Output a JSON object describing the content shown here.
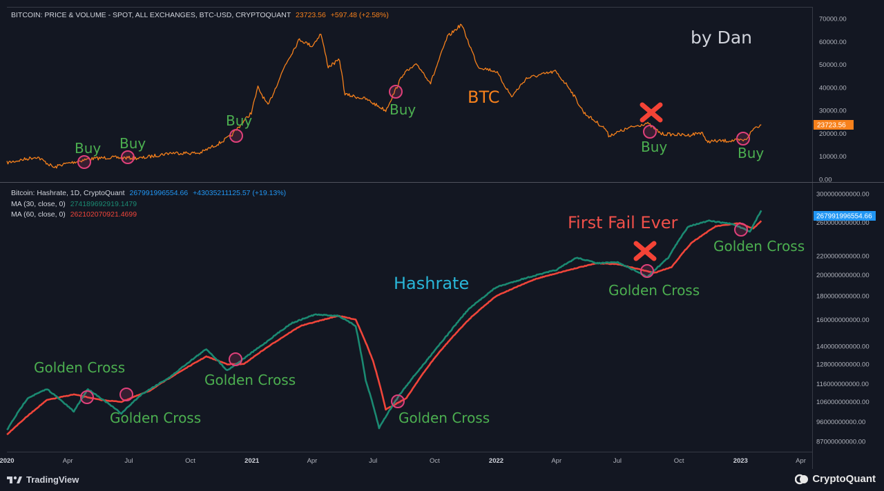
{
  "header_top": {
    "title": "BITCOIN: PRICE & VOLUME - SPOT, ALL EXCHANGES, BTC-USD, CRYPTOQUANT",
    "value": "23723.56",
    "change": "+597.48 (+2.58%)"
  },
  "header_bottom": {
    "title": "Bitcoin: Hashrate, 1D, CryptoQuant",
    "value": "267991996554.66",
    "change": "+43035211125.57 (+19.13%)",
    "ma30_label": "MA (30, close, 0)",
    "ma30_value": "274189692919.1479",
    "ma60_label": "MA (60, close, 0)",
    "ma60_value": "262102070921.4699"
  },
  "annotations": {
    "author": "by Dan",
    "btc": "BTC",
    "hashrate": "Hashrate",
    "first_fail": "First Fail Ever",
    "buy": "Buy",
    "golden_cross": "Golden Cross"
  },
  "price_badge": "23723.56",
  "hash_badge": "267991996554.66",
  "footer": {
    "tradingview": "TradingView",
    "cryptoquant": "CryptoQuant"
  },
  "colors": {
    "btc": "#f7811c",
    "ma30": "#1b8a72",
    "ma60": "#f0453a",
    "buy_text": "#4caf50",
    "circle": "#e0407a",
    "x_mark": "#f44336",
    "hashrate_text": "#29b6d8",
    "first_fail_text": "#f0504a",
    "hash_badge": "#2196f3",
    "background": "#131722"
  },
  "chart_data": [
    {
      "type": "line",
      "title": "BITCOIN: PRICE & VOLUME - SPOT, ALL EXCHANGES, BTC-USD, CRYPTOQUANT",
      "ylim": [
        0,
        70000
      ],
      "yticks": [
        "70000.00",
        "60000.00",
        "50000.00",
        "40000.00",
        "30000.00",
        "20000.00",
        "10000.00",
        "0.00"
      ],
      "series": [
        {
          "name": "BTC",
          "x": [
            "2020-01-01",
            "2020-02-15",
            "2020-03-12",
            "2020-03-20",
            "2020-05-01",
            "2020-06-01",
            "2020-07-20",
            "2020-09-01",
            "2020-10-15",
            "2020-11-15",
            "2020-12-01",
            "2020-12-31",
            "2021-01-10",
            "2021-01-25",
            "2021-02-20",
            "2021-03-13",
            "2021-04-01",
            "2021-04-14",
            "2021-04-25",
            "2021-05-12",
            "2021-05-20",
            "2021-06-20",
            "2021-07-20",
            "2021-08-15",
            "2021-09-05",
            "2021-09-25",
            "2021-10-20",
            "2021-11-10",
            "2021-12-05",
            "2022-01-01",
            "2022-01-24",
            "2022-02-15",
            "2022-03-30",
            "2022-04-20",
            "2022-05-12",
            "2022-06-13",
            "2022-06-18",
            "2022-07-20",
            "2022-08-14",
            "2022-09-05",
            "2022-10-15",
            "2022-11-05",
            "2022-11-10",
            "2022-12-15",
            "2023-01-08",
            "2023-01-22",
            "2023-02-01"
          ],
          "values": [
            7200,
            9800,
            5000,
            6200,
            8800,
            9500,
            9200,
            11500,
            11400,
            16000,
            19000,
            29000,
            40000,
            32000,
            50000,
            61000,
            58000,
            63500,
            49000,
            52000,
            37000,
            35000,
            30000,
            46000,
            50000,
            42000,
            62000,
            67500,
            49000,
            47000,
            36000,
            44000,
            47000,
            40000,
            29000,
            22000,
            19000,
            22500,
            24500,
            19800,
            19200,
            20500,
            16500,
            16800,
            17000,
            22500,
            23723
          ]
        }
      ],
      "annotations": [
        {
          "text": "Buy",
          "x": "2020-04-20"
        },
        {
          "text": "Buy",
          "x": "2020-06-25"
        },
        {
          "text": "Buy",
          "x": "2020-11-20"
        },
        {
          "text": "Buy",
          "x": "2021-07-28"
        },
        {
          "text": "Buy",
          "x": "2022-08-20"
        },
        {
          "text": "Buy",
          "x": "2023-01-06"
        }
      ]
    },
    {
      "type": "line",
      "title": "Bitcoin: Hashrate, 1D, CryptoQuant",
      "log_scale": true,
      "ylim": [
        82000000000,
        305000000000
      ],
      "yticks": [
        "300000000000.00",
        "260000000000.00",
        "220000000000.00",
        "200000000000.00",
        "180000000000.00",
        "160000000000.00",
        "140000000000.00",
        "128000000000.00",
        "116000000000.00",
        "106000000000.00",
        "96000000000.00",
        "87000000000.00"
      ],
      "xticks": [
        "2020",
        "Apr",
        "Jul",
        "Oct",
        "2021",
        "Apr",
        "Jul",
        "Oct",
        "2022",
        "Apr",
        "Jul",
        "Oct",
        "2023",
        "Apr"
      ],
      "series": [
        {
          "name": "MA (30, close, 0)",
          "x": [
            "2020-01-01",
            "2020-02-01",
            "2020-03-01",
            "2020-04-10",
            "2020-05-01",
            "2020-06-20",
            "2020-07-20",
            "2020-09-01",
            "2020-10-25",
            "2020-11-25",
            "2020-12-15",
            "2021-01-20",
            "2021-03-01",
            "2021-04-05",
            "2021-05-10",
            "2021-06-05",
            "2021-06-20",
            "2021-07-10",
            "2021-08-10",
            "2021-09-15",
            "2021-10-20",
            "2021-11-20",
            "2022-01-01",
            "2022-02-15",
            "2022-04-01",
            "2022-05-01",
            "2022-06-01",
            "2022-07-01",
            "2022-08-15",
            "2022-09-15",
            "2022-10-15",
            "2022-11-15",
            "2022-12-20",
            "2023-01-15",
            "2023-02-01"
          ],
          "values": [
            92000000000,
            108000000000,
            113000000000,
            101000000000,
            113000000000,
            100000000000,
            110000000000,
            120000000000,
            138000000000,
            124000000000,
            130000000000,
            142000000000,
            157000000000,
            164000000000,
            163000000000,
            155000000000,
            118000000000,
            93000000000,
            110000000000,
            128000000000,
            148000000000,
            168000000000,
            188000000000,
            197000000000,
            205000000000,
            218000000000,
            212000000000,
            213000000000,
            198000000000,
            218000000000,
            255000000000,
            262000000000,
            258000000000,
            248000000000,
            276000000000
          ]
        },
        {
          "name": "MA (60, close, 0)",
          "x": [
            "2020-01-01",
            "2020-03-01",
            "2020-04-10",
            "2020-05-20",
            "2020-06-20",
            "2020-08-01",
            "2020-10-25",
            "2020-11-25",
            "2020-12-20",
            "2021-01-20",
            "2021-03-15",
            "2021-05-10",
            "2021-06-05",
            "2021-07-01",
            "2021-07-20",
            "2021-08-20",
            "2021-10-01",
            "2021-11-25",
            "2022-01-01",
            "2022-03-01",
            "2022-05-01",
            "2022-06-01",
            "2022-07-01",
            "2022-08-25",
            "2022-09-20",
            "2022-10-20",
            "2022-11-25",
            "2022-12-31",
            "2023-01-20",
            "2023-02-01"
          ],
          "values": [
            90000000000,
            107000000000,
            110000000000,
            107000000000,
            106000000000,
            112000000000,
            133000000000,
            128000000000,
            128000000000,
            138000000000,
            155000000000,
            163000000000,
            160000000000,
            130000000000,
            102000000000,
            108000000000,
            132000000000,
            162000000000,
            180000000000,
            196000000000,
            207000000000,
            212000000000,
            211000000000,
            202000000000,
            208000000000,
            235000000000,
            255000000000,
            259000000000,
            252000000000,
            262000000000
          ]
        }
      ],
      "annotations": [
        {
          "text": "Golden Cross",
          "x": "2020-04-20"
        },
        {
          "text": "Golden Cross",
          "x": "2020-06-25"
        },
        {
          "text": "Golden Cross",
          "x": "2020-12-10"
        },
        {
          "text": "Golden Cross",
          "x": "2021-08-01"
        },
        {
          "text": "Golden Cross",
          "x": "2022-08-20"
        },
        {
          "text": "Golden Cross",
          "x": "2023-01-06"
        },
        {
          "text": "First Fail Ever",
          "x": "2022-08-20"
        }
      ]
    }
  ]
}
